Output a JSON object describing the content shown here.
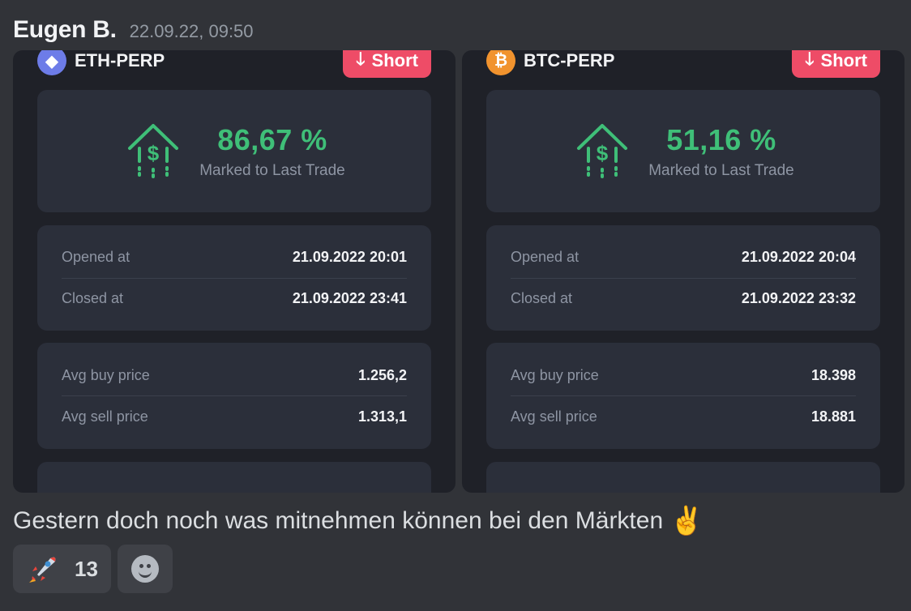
{
  "message": {
    "author": "Eugen B.",
    "timestamp": "22.09.22, 09:50",
    "text": "Gestern doch noch was mitnehmen können bei den Märkten",
    "emoji": "✌️"
  },
  "cards": [
    {
      "pair": "ETH-PERP",
      "coin_icon": "ethereum-icon",
      "coin_color": "#6d7ce8",
      "direction": "Short",
      "pnl": "86,67 %",
      "pnl_label": "Marked to Last Trade",
      "opened_label": "Opened at",
      "opened": "21.09.2022 20:01",
      "closed_label": "Closed at",
      "closed": "21.09.2022 23:41",
      "buy_label": "Avg buy price",
      "buy": "1.256,2",
      "sell_label": "Avg sell price",
      "sell": "1.313,1"
    },
    {
      "pair": "BTC-PERP",
      "coin_icon": "bitcoin-icon",
      "coin_color": "#f1932e",
      "direction": "Short",
      "pnl": "51,16 %",
      "pnl_label": "Marked to Last Trade",
      "opened_label": "Opened at",
      "opened": "21.09.2022 20:04",
      "closed_label": "Closed at",
      "closed": "21.09.2022 23:32",
      "buy_label": "Avg buy price",
      "buy": "18.398",
      "sell_label": "Avg sell price",
      "sell": "18.881"
    }
  ],
  "reactions": [
    {
      "emoji_icon": "rocket-icon",
      "emoji": "🚀",
      "count": "13"
    }
  ],
  "colors": {
    "accent_green": "#3fbf78",
    "short_red": "#ee4c67",
    "background": "#313338",
    "card": "#1f2128"
  }
}
